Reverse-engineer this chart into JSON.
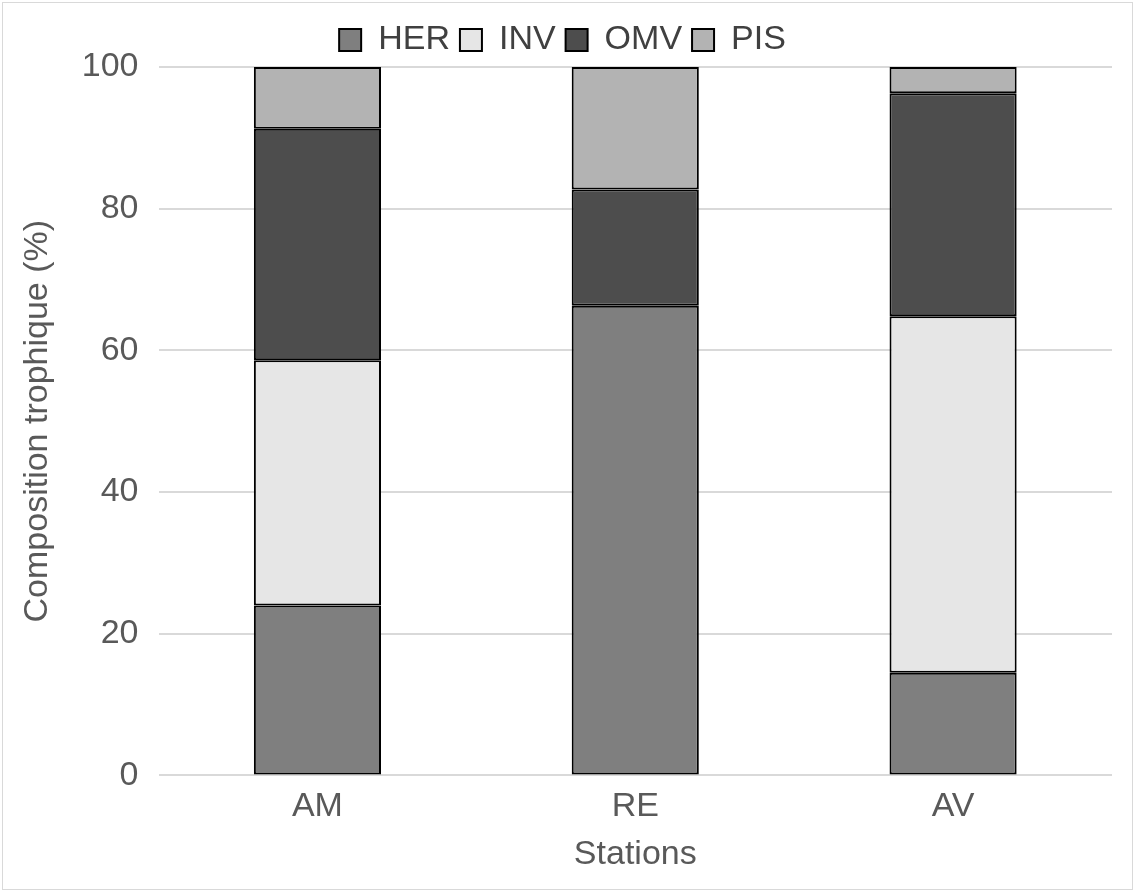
{
  "chart_data": {
    "type": "bar",
    "stacked": true,
    "xlabel": "Stations",
    "ylabel": "Composition trophique (%)",
    "categories": [
      "AM",
      "RE",
      "AV"
    ],
    "series": [
      {
        "name": "HER",
        "color": "#7f7f7f",
        "values": [
          24.0,
          66.3,
          14.5
        ]
      },
      {
        "name": "INV",
        "color": "#e6e6e6",
        "values": [
          34.6,
          0,
          50.3
        ]
      },
      {
        "name": "OMV",
        "color": "#4d4d4d",
        "values": [
          32.7,
          16.4,
          31.5
        ]
      },
      {
        "name": "PIS",
        "color": "#b3b3b3",
        "values": [
          8.7,
          17.3,
          3.7
        ]
      }
    ],
    "ylim": [
      0,
      100
    ],
    "yticks": [
      0,
      20,
      40,
      60,
      80,
      100
    ],
    "grid": "y",
    "legend": "top"
  }
}
